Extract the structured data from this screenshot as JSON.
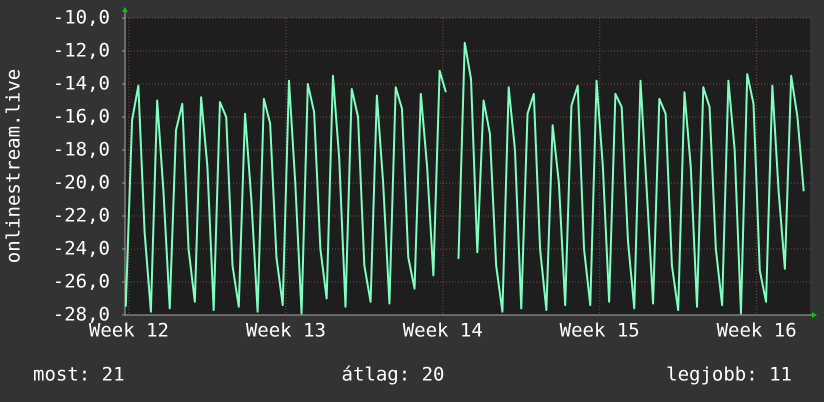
{
  "chart_data": {
    "type": "line",
    "y_label": "onlinestream.live",
    "color": "#80ffc0",
    "grid": true,
    "ylim": [
      -28,
      -10
    ],
    "yticks": [
      {
        "value": -10,
        "label": "-10,0"
      },
      {
        "value": -12,
        "label": "-12,0"
      },
      {
        "value": -14,
        "label": "-14,0"
      },
      {
        "value": -16,
        "label": "-16,0"
      },
      {
        "value": -18,
        "label": "-18,0"
      },
      {
        "value": -20,
        "label": "-20,0"
      },
      {
        "value": -22,
        "label": "-22,0"
      },
      {
        "value": -24,
        "label": "-24,0"
      },
      {
        "value": -26,
        "label": "-26,0"
      },
      {
        "value": -28,
        "label": "-28,0"
      }
    ],
    "xlim": [
      11.975,
      16.34
    ],
    "xticks": [
      {
        "value": 12,
        "label": "Week 12"
      },
      {
        "value": 13,
        "label": "Week 13"
      },
      {
        "value": 14,
        "label": "Week 14"
      },
      {
        "value": 15,
        "label": "Week 15"
      },
      {
        "value": 16,
        "label": "Week 16"
      }
    ],
    "x": [
      11.98,
      12.02,
      12.06,
      12.1,
      12.14,
      12.18,
      12.22,
      12.26,
      12.3,
      12.34,
      12.38,
      12.42,
      12.46,
      12.5,
      12.54,
      12.58,
      12.62,
      12.66,
      12.7,
      12.74,
      12.78,
      12.82,
      12.86,
      12.9,
      12.94,
      12.98,
      13.02,
      13.06,
      13.1,
      13.14,
      13.18,
      13.22,
      13.26,
      13.3,
      13.34,
      13.38,
      13.42,
      13.46,
      13.5,
      13.54,
      13.58,
      13.62,
      13.66,
      13.7,
      13.74,
      13.78,
      13.82,
      13.86,
      13.9,
      13.94,
      13.98,
      14.02,
      14.06,
      14.1,
      14.14,
      14.18,
      14.22,
      14.26,
      14.3,
      14.34,
      14.38,
      14.42,
      14.46,
      14.5,
      14.54,
      14.58,
      14.62,
      14.66,
      14.7,
      14.74,
      14.78,
      14.82,
      14.86,
      14.9,
      14.94,
      14.98,
      15.02,
      15.06,
      15.1,
      15.14,
      15.18,
      15.22,
      15.26,
      15.3,
      15.34,
      15.38,
      15.42,
      15.46,
      15.5,
      15.54,
      15.58,
      15.62,
      15.66,
      15.7,
      15.74,
      15.78,
      15.82,
      15.86,
      15.9,
      15.94,
      15.98,
      16.02,
      16.06,
      16.1,
      16.14,
      16.18,
      16.22,
      16.26,
      16.3
    ],
    "values": [
      -27.5,
      -16.2,
      -14.1,
      -23,
      -27.8,
      -15,
      -20.5,
      -27.6,
      -16.8,
      -15.2,
      -24,
      -27.2,
      -14.8,
      -19,
      -27.7,
      -15.1,
      -16,
      -25,
      -27.5,
      -15.8,
      -21,
      -27.8,
      -14.9,
      -16.4,
      -24.5,
      -27.4,
      -13.8,
      -20,
      -27.9,
      -14,
      -15.7,
      -24,
      -27,
      -13.5,
      -18.5,
      -27.5,
      -14.3,
      -16,
      -25,
      -27.2,
      -14.7,
      -20,
      -27.3,
      -14.2,
      -15.5,
      -24.5,
      -26.4,
      -14.6,
      -19,
      -25.6,
      -13.2,
      -14.5,
      null,
      -24.6,
      -11.5,
      -13.7,
      -24.2,
      -15,
      -17,
      -25,
      -27.8,
      -14.2,
      -18,
      -27.6,
      -15.8,
      -14.6,
      -24,
      -27.7,
      -16.5,
      -20,
      -27.4,
      -15.3,
      -14.1,
      -24,
      -27.4,
      -13.8,
      -19,
      -27.2,
      -14.6,
      -15.4,
      -23.5,
      -27.6,
      -13.8,
      -20.5,
      -27.3,
      -14.9,
      -15.8,
      -25,
      -27.7,
      -14.5,
      -19,
      -27.5,
      -14.2,
      -15.4,
      -24,
      -27.4,
      -13.8,
      -18,
      -27.9,
      -13.4,
      -15.2,
      -25.3,
      -27.2,
      -14.1,
      -20.5,
      -25.2,
      -13.5,
      -16,
      -20.5
    ],
    "footer": [
      "most: 21",
      "átlag: 20",
      "legjobb: 11"
    ]
  }
}
